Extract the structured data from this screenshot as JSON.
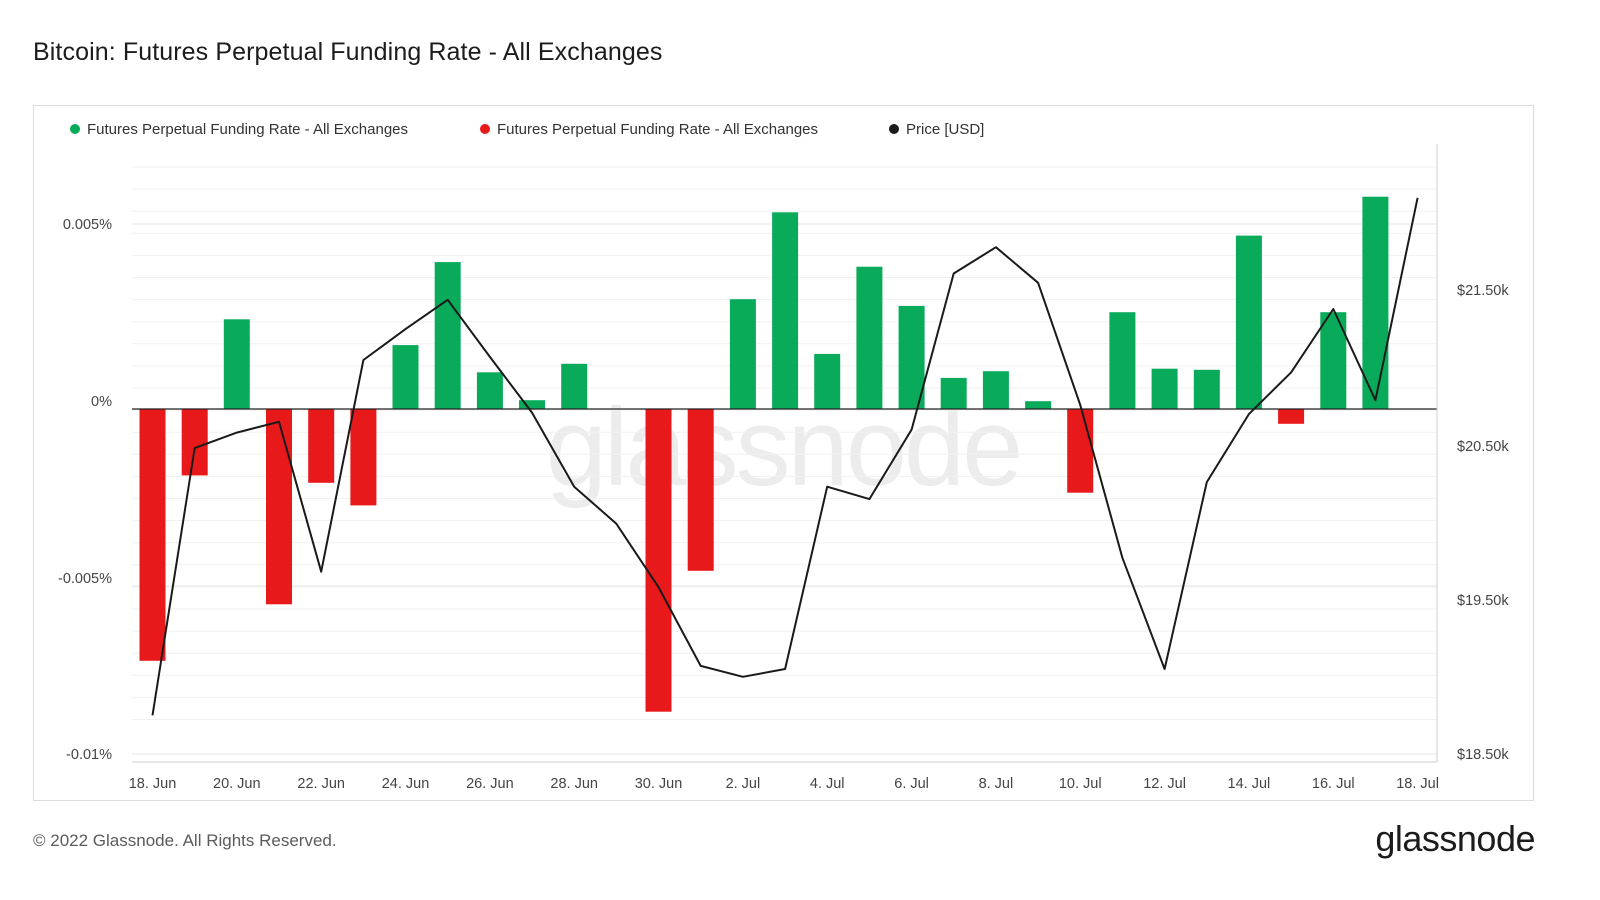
{
  "title": "Bitcoin: Futures Perpetual Funding Rate - All Exchanges",
  "footer": "© 2022 Glassnode. All Rights Reserved.",
  "brand": "glassnode",
  "watermark": "glassnode",
  "colors": {
    "positive": "#0aaa5b",
    "negative": "#e8191a",
    "price": "#1a1a1a"
  },
  "legend": [
    {
      "label": "Futures Perpetual Funding Rate - All Exchanges",
      "color": "#0aaa5b"
    },
    {
      "label": "Futures Perpetual Funding Rate - All Exchanges",
      "color": "#e8191a"
    },
    {
      "label": "Price [USD]",
      "color": "#1a1a1a"
    }
  ],
  "chart_data": {
    "type": "bar",
    "title": "Bitcoin: Futures Perpetual Funding Rate - All Exchanges",
    "categories": [
      "18. Jun",
      "19. Jun",
      "20. Jun",
      "21. Jun",
      "22. Jun",
      "23. Jun",
      "24. Jun",
      "25. Jun",
      "26. Jun",
      "27. Jun",
      "28. Jun",
      "29. Jun",
      "30. Jun",
      "1. Jul",
      "2. Jul",
      "3. Jul",
      "4. Jul",
      "5. Jul",
      "6. Jul",
      "7. Jul",
      "8. Jul",
      "9. Jul",
      "10. Jul",
      "11. Jul",
      "12. Jul",
      "13. Jul",
      "14. Jul",
      "15. Jul",
      "16. Jul",
      "17. Jul",
      "18. Jul"
    ],
    "x_tick_labels": [
      "18. Jun",
      "20. Jun",
      "22. Jun",
      "24. Jun",
      "26. Jun",
      "28. Jun",
      "30. Jun",
      "2. Jul",
      "4. Jul",
      "6. Jul",
      "8. Jul",
      "10. Jul",
      "12. Jul",
      "14. Jul",
      "16. Jul",
      "18. Jul"
    ],
    "series": [
      {
        "name": "Futures Perpetual Funding Rate - All Exchanges",
        "axis": "left",
        "unit": "%",
        "values": [
          -0.00713,
          -0.00188,
          0.00254,
          -0.00553,
          -0.00209,
          -0.00273,
          0.00181,
          0.00416,
          0.00104,
          0.00025,
          0.00128,
          0.0,
          -0.00857,
          -0.00458,
          0.00311,
          0.00557,
          0.00156,
          0.00403,
          0.00292,
          0.00088,
          0.00107,
          0.00022,
          -0.00237,
          0.00274,
          0.00114,
          0.00111,
          0.00491,
          -0.00042,
          0.00274,
          0.00601,
          null
        ]
      },
      {
        "name": "Price [USD]",
        "axis": "right",
        "type": "line",
        "values": [
          18750,
          20480,
          20580,
          20650,
          19680,
          21050,
          21250,
          21440,
          21070,
          20710,
          20230,
          19990,
          19580,
          19070,
          19000,
          19050,
          20230,
          20150,
          20600,
          21610,
          21780,
          21550,
          20760,
          19770,
          19050,
          20260,
          20700,
          20970,
          21380,
          20790,
          22100
        ]
      }
    ],
    "y_left": {
      "ticks": [
        "0.005%",
        "0%",
        "-0.005%",
        "-0.01%"
      ],
      "range": [
        -0.01,
        0.007
      ]
    },
    "y_right": {
      "ticks": [
        "$21.50k",
        "$20.50k",
        "$19.50k",
        "$18.50k"
      ],
      "range": [
        18500,
        22400
      ]
    },
    "grid": true,
    "legend_position": "top-left"
  }
}
